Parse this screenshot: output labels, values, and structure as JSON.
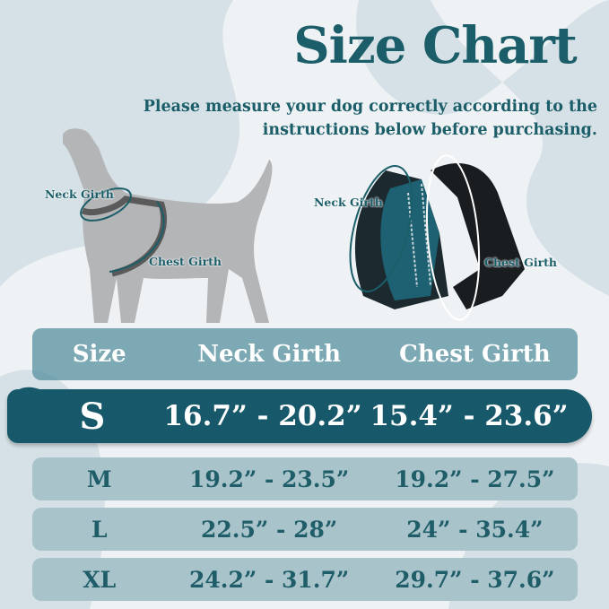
{
  "title": "Size Chart",
  "subtitle_line1": "Please measure your dog correctly according to the",
  "subtitle_line2": "instructions below before purchasing.",
  "dog_labels": {
    "neck": "Neck Girth",
    "chest": "Chest Girth"
  },
  "harness_labels": {
    "neck": "Neck Girth",
    "chest": "Chest Girth"
  },
  "colors": {
    "primary": "#17596a",
    "row": "#a9c3cb",
    "header": "#508c9b"
  },
  "table": {
    "headers": [
      "Size",
      "Neck Girth",
      "Chest Girth"
    ],
    "rows": [
      {
        "size": "S",
        "neck": "16.7” - 20.2”",
        "chest": "15.4” - 23.6”",
        "highlighted": true
      },
      {
        "size": "M",
        "neck": "19.2” - 23.5”",
        "chest": "19.2” - 27.5”"
      },
      {
        "size": "L",
        "neck": "22.5” - 28”",
        "chest": "24” - 35.4”"
      },
      {
        "size": "XL",
        "neck": "24.2” - 31.7”",
        "chest": "29.7” - 37.6”"
      }
    ]
  }
}
